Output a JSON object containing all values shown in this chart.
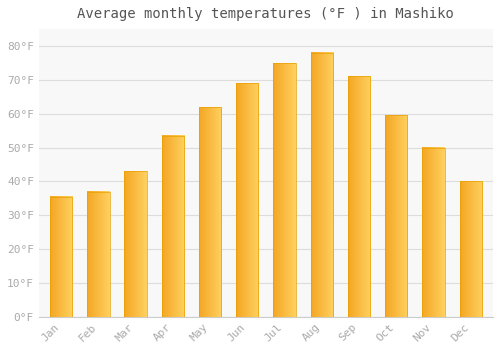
{
  "title": "Average monthly temperatures (°F ) in Mashiko",
  "months": [
    "Jan",
    "Feb",
    "Mar",
    "Apr",
    "May",
    "Jun",
    "Jul",
    "Aug",
    "Sep",
    "Oct",
    "Nov",
    "Dec"
  ],
  "values": [
    35.5,
    37.0,
    43.0,
    53.5,
    62.0,
    69.0,
    75.0,
    78.0,
    71.0,
    59.5,
    50.0,
    40.0
  ],
  "bar_color_left": "#F5A623",
  "bar_color_right": "#FFD060",
  "background_color": "#FFFFFF",
  "plot_bg_color": "#F8F8F8",
  "grid_color": "#DDDDDD",
  "text_color": "#AAAAAA",
  "title_color": "#555555",
  "ylim": [
    0,
    85
  ],
  "yticks": [
    0,
    10,
    20,
    30,
    40,
    50,
    60,
    70,
    80
  ],
  "title_fontsize": 10,
  "tick_fontsize": 8,
  "bar_width": 0.6
}
